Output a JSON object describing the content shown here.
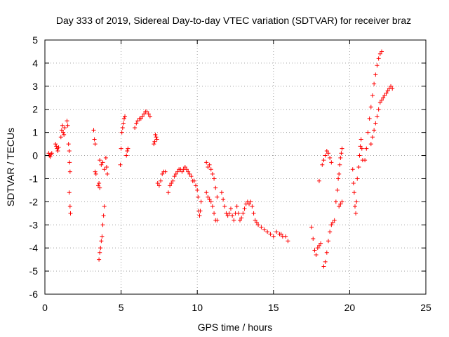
{
  "chart_data": {
    "type": "scatter",
    "title": "Day 333 of 2019, Sidereal Day-to-day VTEC variation (SDTVAR) for receiver braz",
    "xlabel": "GPS time / hours",
    "ylabel": "SDTVAR / TECUs",
    "xlim": [
      0,
      25
    ],
    "ylim": [
      -6,
      5
    ],
    "xticks": [
      "0",
      "5",
      "10",
      "15",
      "20",
      "25"
    ],
    "yticks": [
      "5",
      "4",
      "3",
      "2",
      "1",
      "0",
      "-1",
      "-2",
      "-3",
      "-4",
      "-5",
      "-6"
    ],
    "grid": true,
    "marker": "+",
    "marker_color": "#ff0000",
    "series": [
      {
        "name": "SDTVAR",
        "points": [
          [
            0.25,
            0.1
          ],
          [
            0.3,
            0.0
          ],
          [
            0.35,
            -0.05
          ],
          [
            0.4,
            0.05
          ],
          [
            0.45,
            0.1
          ],
          [
            0.7,
            0.5
          ],
          [
            0.75,
            0.4
          ],
          [
            0.8,
            0.3
          ],
          [
            0.85,
            0.2
          ],
          [
            0.9,
            0.35
          ],
          [
            1.05,
            0.8
          ],
          [
            1.1,
            1.1
          ],
          [
            1.15,
            1.3
          ],
          [
            1.2,
            1.0
          ],
          [
            1.25,
            0.9
          ],
          [
            1.3,
            1.2
          ],
          [
            1.45,
            1.5
          ],
          [
            1.5,
            1.3
          ],
          [
            1.55,
            0.5
          ],
          [
            1.6,
            0.2
          ],
          [
            1.62,
            -0.3
          ],
          [
            1.65,
            -0.7
          ],
          [
            1.6,
            -1.6
          ],
          [
            1.65,
            -2.2
          ],
          [
            1.68,
            -2.5
          ],
          [
            3.2,
            1.1
          ],
          [
            3.25,
            0.7
          ],
          [
            3.3,
            0.5
          ],
          [
            3.3,
            -0.7
          ],
          [
            3.35,
            -0.8
          ],
          [
            3.5,
            -1.3
          ],
          [
            3.55,
            -1.2
          ],
          [
            3.6,
            -1.4
          ],
          [
            3.55,
            -4.5
          ],
          [
            3.6,
            -4.2
          ],
          [
            3.65,
            -4.0
          ],
          [
            3.7,
            -3.7
          ],
          [
            3.75,
            -3.5
          ],
          [
            3.8,
            -3.0
          ],
          [
            3.85,
            -2.6
          ],
          [
            3.9,
            -2.2
          ],
          [
            3.6,
            -0.2
          ],
          [
            3.7,
            -0.4
          ],
          [
            3.8,
            -0.3
          ],
          [
            3.9,
            -0.6
          ],
          [
            4.0,
            -0.1
          ],
          [
            4.05,
            -0.5
          ],
          [
            4.1,
            -0.8
          ],
          [
            4.95,
            -0.4
          ],
          [
            5.0,
            0.3
          ],
          [
            5.05,
            1.0
          ],
          [
            5.1,
            1.2
          ],
          [
            5.15,
            1.4
          ],
          [
            5.2,
            1.6
          ],
          [
            5.25,
            1.7
          ],
          [
            5.35,
            0.0
          ],
          [
            5.4,
            0.2
          ],
          [
            5.45,
            0.3
          ],
          [
            5.9,
            1.2
          ],
          [
            6.0,
            1.4
          ],
          [
            6.1,
            1.5
          ],
          [
            6.2,
            1.6
          ],
          [
            6.3,
            1.6
          ],
          [
            6.4,
            1.7
          ],
          [
            6.5,
            1.8
          ],
          [
            6.6,
            1.9
          ],
          [
            6.7,
            1.9
          ],
          [
            6.8,
            1.8
          ],
          [
            6.9,
            1.7
          ],
          [
            7.15,
            0.5
          ],
          [
            7.2,
            0.6
          ],
          [
            7.25,
            0.9
          ],
          [
            7.3,
            0.8
          ],
          [
            7.35,
            0.7
          ],
          [
            7.4,
            -1.2
          ],
          [
            7.5,
            -1.3
          ],
          [
            7.6,
            -1.1
          ],
          [
            7.7,
            -0.8
          ],
          [
            7.8,
            -0.7
          ],
          [
            7.9,
            -0.7
          ],
          [
            8.1,
            -1.6
          ],
          [
            8.2,
            -1.3
          ],
          [
            8.3,
            -1.2
          ],
          [
            8.4,
            -1.1
          ],
          [
            8.5,
            -0.9
          ],
          [
            8.6,
            -0.8
          ],
          [
            8.7,
            -0.7
          ],
          [
            8.8,
            -0.6
          ],
          [
            8.9,
            -0.6
          ],
          [
            9.0,
            -0.7
          ],
          [
            9.1,
            -0.6
          ],
          [
            9.2,
            -0.5
          ],
          [
            9.3,
            -0.6
          ],
          [
            9.4,
            -0.7
          ],
          [
            9.5,
            -0.8
          ],
          [
            9.6,
            -0.9
          ],
          [
            9.7,
            -1.1
          ],
          [
            9.8,
            -1.1
          ],
          [
            9.9,
            -1.3
          ],
          [
            10.0,
            -1.5
          ],
          [
            10.05,
            -1.8
          ],
          [
            10.1,
            -2.4
          ],
          [
            10.15,
            -2.6
          ],
          [
            10.2,
            -2.4
          ],
          [
            10.25,
            -2.0
          ],
          [
            10.6,
            -0.3
          ],
          [
            10.7,
            -0.5
          ],
          [
            10.8,
            -0.4
          ],
          [
            10.9,
            -0.6
          ],
          [
            11.0,
            -0.8
          ],
          [
            11.1,
            -1.0
          ],
          [
            11.2,
            -1.4
          ],
          [
            11.3,
            -1.8
          ],
          [
            10.6,
            -1.6
          ],
          [
            10.7,
            -1.8
          ],
          [
            10.8,
            -1.9
          ],
          [
            10.9,
            -2.0
          ],
          [
            11.0,
            -2.2
          ],
          [
            11.1,
            -2.5
          ],
          [
            11.2,
            -2.8
          ],
          [
            11.3,
            -2.8
          ],
          [
            11.6,
            -1.6
          ],
          [
            11.7,
            -1.9
          ],
          [
            11.8,
            -2.2
          ],
          [
            11.9,
            -2.5
          ],
          [
            12.0,
            -2.6
          ],
          [
            12.1,
            -2.5
          ],
          [
            12.2,
            -2.3
          ],
          [
            12.3,
            -2.6
          ],
          [
            12.4,
            -2.8
          ],
          [
            12.5,
            -2.5
          ],
          [
            12.6,
            -2.2
          ],
          [
            12.7,
            -2.5
          ],
          [
            12.8,
            -2.8
          ],
          [
            12.9,
            -2.7
          ],
          [
            13.0,
            -2.5
          ],
          [
            13.1,
            -2.3
          ],
          [
            13.2,
            -2.1
          ],
          [
            13.3,
            -2.0
          ],
          [
            13.4,
            -2.1
          ],
          [
            13.5,
            -2.0
          ],
          [
            13.6,
            -2.2
          ],
          [
            13.7,
            -2.5
          ],
          [
            13.8,
            -2.8
          ],
          [
            13.9,
            -2.9
          ],
          [
            14.0,
            -3.0
          ],
          [
            14.2,
            -3.1
          ],
          [
            14.4,
            -3.2
          ],
          [
            14.6,
            -3.3
          ],
          [
            14.8,
            -3.4
          ],
          [
            15.0,
            -3.5
          ],
          [
            15.2,
            -3.3
          ],
          [
            15.4,
            -3.4
          ],
          [
            15.5,
            -3.4
          ],
          [
            15.6,
            -3.5
          ],
          [
            15.8,
            -3.5
          ],
          [
            15.95,
            -3.7
          ],
          [
            17.5,
            -3.1
          ],
          [
            17.6,
            -3.6
          ],
          [
            17.7,
            -4.1
          ],
          [
            17.8,
            -4.3
          ],
          [
            17.9,
            -4.0
          ],
          [
            18.0,
            -3.9
          ],
          [
            18.1,
            -3.8
          ],
          [
            18.0,
            -1.1
          ],
          [
            18.2,
            -0.4
          ],
          [
            18.3,
            -0.2
          ],
          [
            18.4,
            0.0
          ],
          [
            18.5,
            0.2
          ],
          [
            18.6,
            0.1
          ],
          [
            18.7,
            -0.1
          ],
          [
            18.8,
            -0.3
          ],
          [
            18.3,
            -4.8
          ],
          [
            18.4,
            -4.6
          ],
          [
            18.5,
            -4.2
          ],
          [
            18.6,
            -3.7
          ],
          [
            18.7,
            -3.3
          ],
          [
            18.8,
            -3.0
          ],
          [
            18.9,
            -2.9
          ],
          [
            19.0,
            -2.8
          ],
          [
            19.1,
            -2.0
          ],
          [
            19.2,
            -1.5
          ],
          [
            19.25,
            -1.0
          ],
          [
            19.3,
            -0.8
          ],
          [
            19.35,
            -0.4
          ],
          [
            19.4,
            -0.1
          ],
          [
            19.45,
            0.1
          ],
          [
            19.5,
            0.3
          ],
          [
            19.3,
            -2.2
          ],
          [
            19.4,
            -2.1
          ],
          [
            19.5,
            -2.0
          ],
          [
            20.2,
            -0.6
          ],
          [
            20.25,
            -1.2
          ],
          [
            20.3,
            -1.6
          ],
          [
            20.35,
            -2.2
          ],
          [
            20.4,
            -2.5
          ],
          [
            20.45,
            -2.0
          ],
          [
            20.5,
            -1.0
          ],
          [
            20.6,
            -0.5
          ],
          [
            20.65,
            0.0
          ],
          [
            20.7,
            0.4
          ],
          [
            20.75,
            0.7
          ],
          [
            20.8,
            0.3
          ],
          [
            20.85,
            -0.2
          ],
          [
            21.0,
            -0.2
          ],
          [
            21.1,
            0.3
          ],
          [
            21.2,
            1.0
          ],
          [
            21.3,
            1.6
          ],
          [
            21.4,
            2.1
          ],
          [
            21.5,
            2.6
          ],
          [
            21.6,
            3.1
          ],
          [
            21.7,
            3.5
          ],
          [
            21.8,
            3.9
          ],
          [
            21.9,
            4.2
          ],
          [
            22.0,
            4.4
          ],
          [
            22.1,
            4.5
          ],
          [
            21.4,
            0.5
          ],
          [
            21.5,
            0.8
          ],
          [
            21.6,
            1.1
          ],
          [
            21.7,
            1.4
          ],
          [
            21.8,
            1.7
          ],
          [
            21.9,
            2.0
          ],
          [
            22.0,
            2.3
          ],
          [
            22.1,
            2.4
          ],
          [
            22.2,
            2.5
          ],
          [
            22.3,
            2.6
          ],
          [
            22.4,
            2.7
          ],
          [
            22.5,
            2.8
          ],
          [
            22.6,
            2.9
          ],
          [
            22.7,
            3.0
          ],
          [
            22.8,
            2.9
          ]
        ]
      }
    ]
  }
}
